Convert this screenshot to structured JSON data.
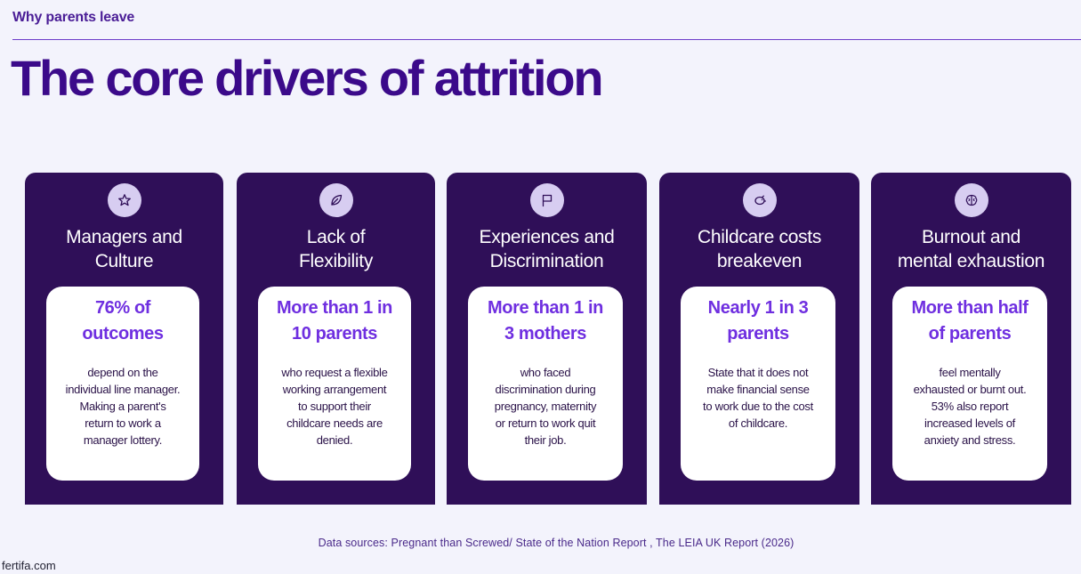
{
  "header": {
    "eyebrow": "Why parents leave",
    "title": "The core drivers of attrition"
  },
  "cards": [
    {
      "icon": "star-icon",
      "title": "Managers and\nCulture",
      "stat": "76% of\noutcomes",
      "description": "depend on the\nindividual line manager.\nMaking a parent's\nreturn to work a\nmanager lottery."
    },
    {
      "icon": "leaf-icon",
      "title": "Lack of\nFlexibility",
      "stat": "More than 1 in\n10 parents",
      "description": "who request a flexible\nworking arrangement\nto support their\nchildcare needs are\ndenied."
    },
    {
      "icon": "flag-icon",
      "title": "Experiences and\nDiscrimination",
      "stat": "More than 1 in\n3 mothers",
      "description": "who faced\ndiscrimination during\npregnancy, maternity\nor return to work quit\ntheir job."
    },
    {
      "icon": "piggy-bank-icon",
      "title": "Childcare costs\nbreakeven",
      "stat": "Nearly 1 in 3\nparents",
      "description": "State that it does not\nmake financial sense\nto work due to the cost\nof childcare."
    },
    {
      "icon": "brain-icon",
      "title": "Burnout and\nmental exhaustion",
      "stat": "More than half\nof parents",
      "description": "feel mentally\nexhausted or burnt out.\n53% also report\nincreased levels of\nanxiety and stress."
    }
  ],
  "footer": {
    "sources": "Data sources: Pregnant than Screwed/ State of the Nation Report , The LEIA UK Report (2026)",
    "site": "fertifa.com"
  },
  "colors": {
    "background": "#f3f3fc",
    "card": "#2f0f58",
    "accent": "#6f2fe0",
    "title": "#3b0a8a"
  }
}
